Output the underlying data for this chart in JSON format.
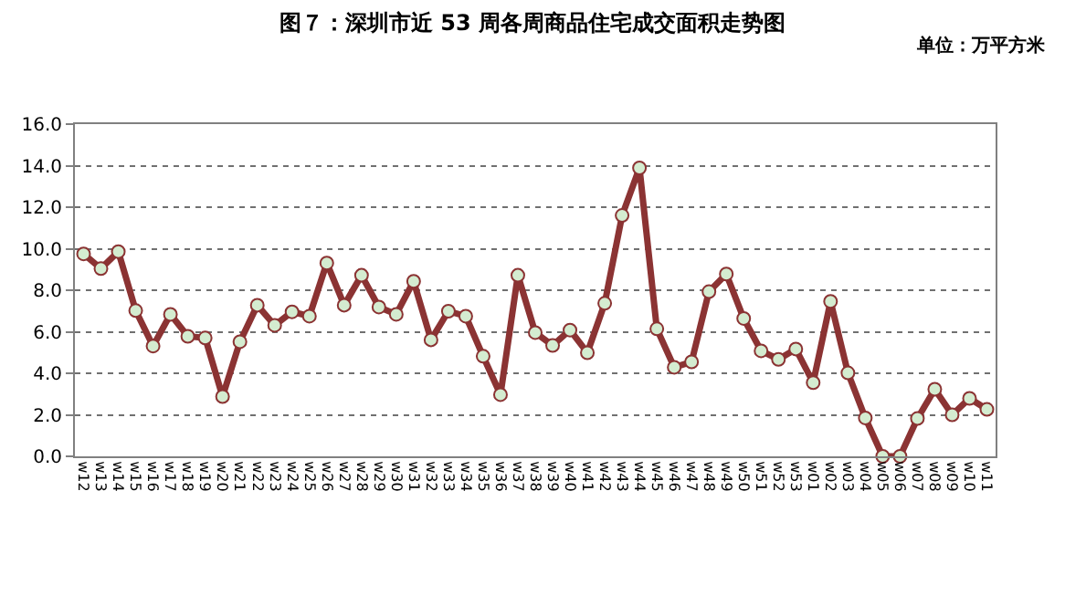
{
  "chart_data": {
    "type": "line",
    "title": "图７：深圳市近 53 周各周商品住宅成交面积走势图",
    "subtitle": "单位：万平方米",
    "categories": [
      "w12",
      "w13",
      "w14",
      "w15",
      "w16",
      "w17",
      "w18",
      "w19",
      "w20",
      "w21",
      "w22",
      "w23",
      "w24",
      "w25",
      "w26",
      "w27",
      "w28",
      "w29",
      "w30",
      "w31",
      "w32",
      "w33",
      "w34",
      "w35",
      "w36",
      "w37",
      "w38",
      "w39",
      "w40",
      "w41",
      "w42",
      "w43",
      "w44",
      "w45",
      "w46",
      "w47",
      "w48",
      "w49",
      "w50",
      "w51",
      "w52",
      "w53",
      "w01",
      "w02",
      "w03",
      "w04",
      "w05",
      "w06",
      "w07",
      "w08",
      "w09",
      "w10",
      "w11"
    ],
    "series": [
      {
        "color": "#8b3333",
        "values": [
          9.75,
          9.04,
          9.86,
          7.02,
          5.31,
          6.84,
          5.78,
          5.7,
          2.88,
          5.52,
          7.28,
          6.31,
          6.96,
          6.75,
          9.31,
          7.28,
          8.72,
          7.19,
          6.84,
          8.43,
          5.61,
          6.99,
          6.75,
          4.82,
          2.97,
          8.72,
          5.96,
          5.34,
          6.08,
          4.99,
          7.37,
          11.6,
          13.89,
          6.14,
          4.29,
          4.55,
          7.93,
          8.78,
          6.64,
          5.08,
          4.67,
          5.17,
          3.55,
          7.46,
          4.02,
          1.85,
          0,
          0,
          1.82,
          3.23,
          2.0,
          2.79,
          2.26
        ]
      }
    ],
    "ylim": [
      0,
      16
    ],
    "yticks": [
      {
        "value": 0,
        "label": "0.0"
      },
      {
        "value": 2,
        "label": "2.0"
      },
      {
        "value": 4,
        "label": "4.0"
      },
      {
        "value": 6,
        "label": "6.0"
      },
      {
        "value": 8,
        "label": "8.0"
      },
      {
        "value": 10,
        "label": "10.0"
      },
      {
        "value": 12,
        "label": "12.0"
      },
      {
        "value": 14,
        "label": "14.0"
      },
      {
        "value": 16,
        "label": "16.0"
      }
    ],
    "grid": "y",
    "marker": "circle",
    "line_style": "solid",
    "legend": false
  }
}
